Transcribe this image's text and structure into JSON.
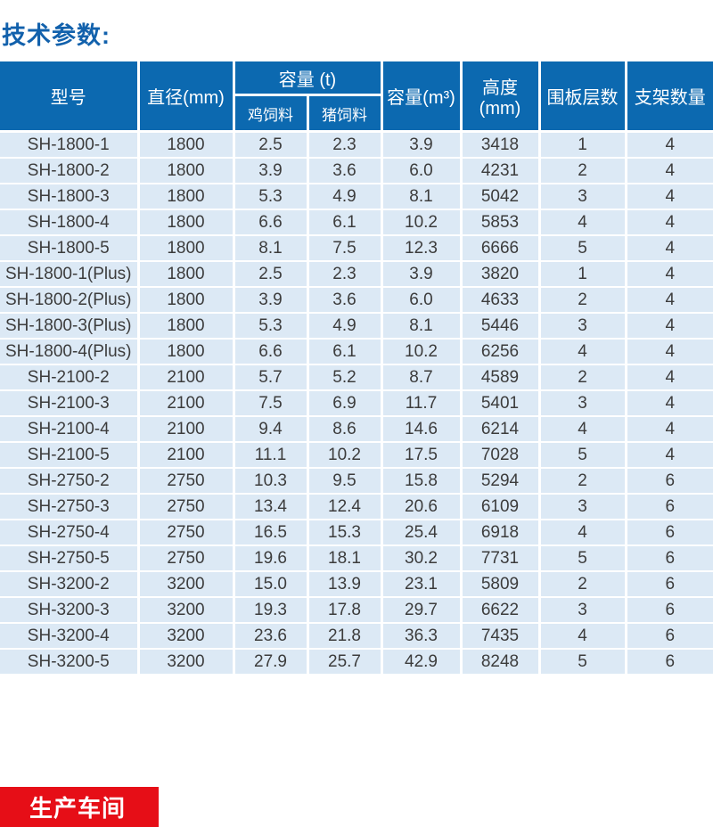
{
  "page": {
    "title": "技术参数:"
  },
  "table": {
    "header": {
      "model": "型号",
      "diameter": "直径(mm)",
      "capacity_t_group": "容量 (t)",
      "chicken": "鸡饲料",
      "pig": "猪饲料",
      "capacity_m3": "容量(m³)",
      "height": "高度(mm)",
      "layers": "围板层数",
      "supports": "支架数量"
    },
    "row_keys": [
      "model",
      "diameter",
      "chicken",
      "pig",
      "volume",
      "height",
      "layers",
      "supports"
    ],
    "rows": [
      {
        "model": "SH-1800-1",
        "diameter": "1800",
        "chicken": "2.5",
        "pig": "2.3",
        "volume": "3.9",
        "height": "3418",
        "layers": "1",
        "supports": "4"
      },
      {
        "model": "SH-1800-2",
        "diameter": "1800",
        "chicken": "3.9",
        "pig": "3.6",
        "volume": "6.0",
        "height": "4231",
        "layers": "2",
        "supports": "4"
      },
      {
        "model": "SH-1800-3",
        "diameter": "1800",
        "chicken": "5.3",
        "pig": "4.9",
        "volume": "8.1",
        "height": "5042",
        "layers": "3",
        "supports": "4"
      },
      {
        "model": "SH-1800-4",
        "diameter": "1800",
        "chicken": "6.6",
        "pig": "6.1",
        "volume": "10.2",
        "height": "5853",
        "layers": "4",
        "supports": "4"
      },
      {
        "model": "SH-1800-5",
        "diameter": "1800",
        "chicken": "8.1",
        "pig": "7.5",
        "volume": "12.3",
        "height": "6666",
        "layers": "5",
        "supports": "4"
      },
      {
        "model": "SH-1800-1(Plus)",
        "diameter": "1800",
        "chicken": "2.5",
        "pig": "2.3",
        "volume": "3.9",
        "height": "3820",
        "layers": "1",
        "supports": "4"
      },
      {
        "model": "SH-1800-2(Plus)",
        "diameter": "1800",
        "chicken": "3.9",
        "pig": "3.6",
        "volume": "6.0",
        "height": "4633",
        "layers": "2",
        "supports": "4"
      },
      {
        "model": "SH-1800-3(Plus)",
        "diameter": "1800",
        "chicken": "5.3",
        "pig": "4.9",
        "volume": "8.1",
        "height": "5446",
        "layers": "3",
        "supports": "4"
      },
      {
        "model": "SH-1800-4(Plus)",
        "diameter": "1800",
        "chicken": "6.6",
        "pig": "6.1",
        "volume": "10.2",
        "height": "6256",
        "layers": "4",
        "supports": "4"
      },
      {
        "model": "SH-2100-2",
        "diameter": "2100",
        "chicken": "5.7",
        "pig": "5.2",
        "volume": "8.7",
        "height": "4589",
        "layers": "2",
        "supports": "4"
      },
      {
        "model": "SH-2100-3",
        "diameter": "2100",
        "chicken": "7.5",
        "pig": "6.9",
        "volume": "11.7",
        "height": "5401",
        "layers": "3",
        "supports": "4"
      },
      {
        "model": "SH-2100-4",
        "diameter": "2100",
        "chicken": "9.4",
        "pig": "8.6",
        "volume": "14.6",
        "height": "6214",
        "layers": "4",
        "supports": "4"
      },
      {
        "model": "SH-2100-5",
        "diameter": "2100",
        "chicken": "11.1",
        "pig": "10.2",
        "volume": "17.5",
        "height": "7028",
        "layers": "5",
        "supports": "4"
      },
      {
        "model": "SH-2750-2",
        "diameter": "2750",
        "chicken": "10.3",
        "pig": "9.5",
        "volume": "15.8",
        "height": "5294",
        "layers": "2",
        "supports": "6"
      },
      {
        "model": "SH-2750-3",
        "diameter": "2750",
        "chicken": "13.4",
        "pig": "12.4",
        "volume": "20.6",
        "height": "6109",
        "layers": "3",
        "supports": "6"
      },
      {
        "model": "SH-2750-4",
        "diameter": "2750",
        "chicken": "16.5",
        "pig": "15.3",
        "volume": "25.4",
        "height": "6918",
        "layers": "4",
        "supports": "6"
      },
      {
        "model": "SH-2750-5",
        "diameter": "2750",
        "chicken": "19.6",
        "pig": "18.1",
        "volume": "30.2",
        "height": "7731",
        "layers": "5",
        "supports": "6"
      },
      {
        "model": "SH-3200-2",
        "diameter": "3200",
        "chicken": "15.0",
        "pig": "13.9",
        "volume": "23.1",
        "height": "5809",
        "layers": "2",
        "supports": "6"
      },
      {
        "model": "SH-3200-3",
        "diameter": "3200",
        "chicken": "19.3",
        "pig": "17.8",
        "volume": "29.7",
        "height": "6622",
        "layers": "3",
        "supports": "6"
      },
      {
        "model": "SH-3200-4",
        "diameter": "3200",
        "chicken": "23.6",
        "pig": "21.8",
        "volume": "36.3",
        "height": "7435",
        "layers": "4",
        "supports": "6"
      },
      {
        "model": "SH-3200-5",
        "diameter": "3200",
        "chicken": "27.9",
        "pig": "25.7",
        "volume": "42.9",
        "height": "8248",
        "layers": "5",
        "supports": "6"
      }
    ],
    "colors": {
      "header_bg": "#0c69b0",
      "row_bg": "#dce9f5",
      "divider": "#ffffff",
      "data_text": "#3c3c3c",
      "title_text": "#1261ac"
    }
  },
  "footer_banner": {
    "label": "生产车间",
    "bg": "#e60e17"
  }
}
